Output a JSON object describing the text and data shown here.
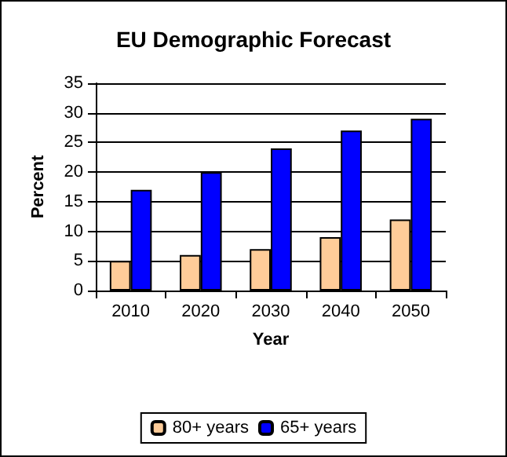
{
  "chart_data": {
    "type": "bar",
    "title": "EU Demographic Forecast",
    "xlabel": "Year",
    "ylabel": "Percent",
    "categories": [
      "2010",
      "2020",
      "2030",
      "2040",
      "2050"
    ],
    "series": [
      {
        "name": "80+ years",
        "color": "#ffcc99",
        "values": [
          5,
          6,
          7,
          9,
          12
        ]
      },
      {
        "name": "65+ years",
        "color": "#0000ff",
        "values": [
          17,
          20,
          24,
          27,
          29
        ]
      }
    ],
    "ylim": [
      0,
      35
    ],
    "yticks": [
      0,
      5,
      10,
      15,
      20,
      25,
      30,
      35
    ],
    "grid": "y",
    "legend": "bottom"
  }
}
